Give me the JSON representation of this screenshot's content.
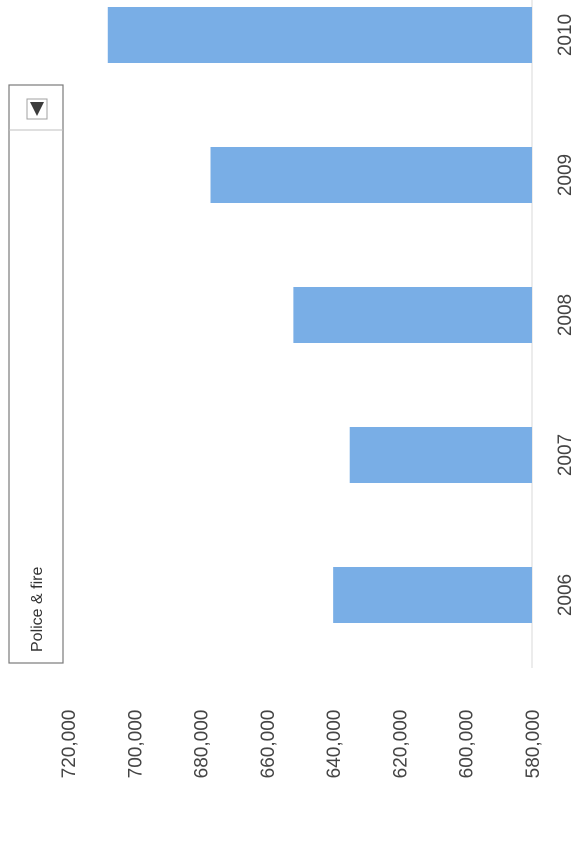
{
  "filter": {
    "selected": "Police & fire",
    "arrow_icon": "triangle-down-icon"
  },
  "colors": {
    "bar": "#79aee6",
    "axis": "#d9d9d9",
    "text": "#444444"
  },
  "chart_data": {
    "type": "bar",
    "orientation": "vertical (image rotated 90° clockwise)",
    "categories": [
      "2006",
      "2007",
      "2008",
      "2009",
      "2010"
    ],
    "values": [
      640000,
      635000,
      652000,
      677000,
      708000
    ],
    "ylim": [
      580000,
      720000
    ],
    "yticks": [
      "580,000",
      "600,000",
      "620,000",
      "640,000",
      "660,000",
      "680,000",
      "700,000",
      "720,000"
    ],
    "title": "",
    "xlabel": "",
    "ylabel": "",
    "grid": false
  }
}
